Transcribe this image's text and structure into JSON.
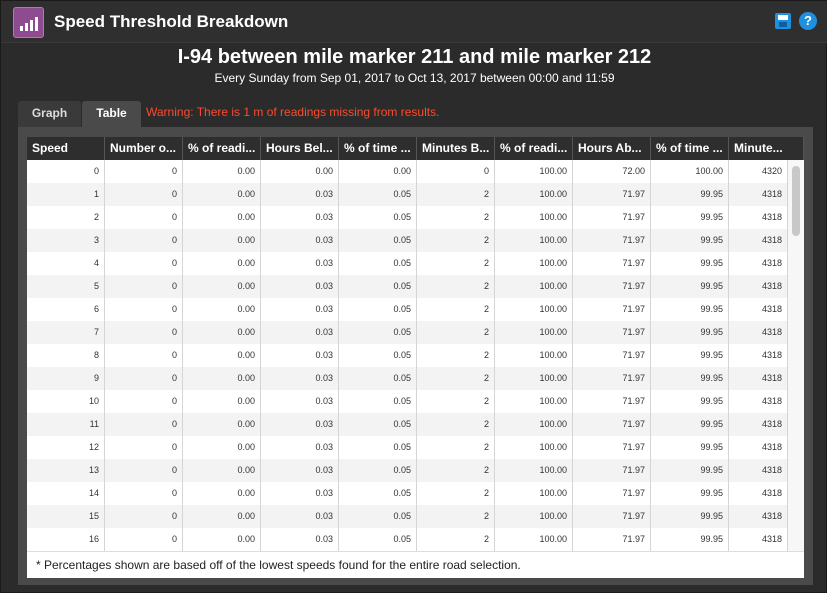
{
  "window": {
    "title": "Speed Threshold Breakdown",
    "help_label": "?"
  },
  "report": {
    "heading": "I-94 between mile marker 211 and mile marker 212",
    "subheading": "Every Sunday from Sep 01, 2017 to Oct 13, 2017 between 00:00 and 11:59"
  },
  "tabs": [
    {
      "label": "Graph",
      "active": false
    },
    {
      "label": "Table",
      "active": true
    }
  ],
  "warning": "Warning: There is 1 m of readings missing from results.",
  "table": {
    "columns": [
      "Speed",
      "Number o...",
      "% of readi...",
      "Hours Bel...",
      "% of time ...",
      "Minutes B...",
      "% of readi...",
      "Hours Ab...",
      "% of time ...",
      "Minute..."
    ],
    "rows": [
      [
        "0",
        "0",
        "0.00",
        "0.00",
        "0.00",
        "0",
        "100.00",
        "72.00",
        "100.00",
        "4320"
      ],
      [
        "1",
        "0",
        "0.00",
        "0.03",
        "0.05",
        "2",
        "100.00",
        "71.97",
        "99.95",
        "4318"
      ],
      [
        "2",
        "0",
        "0.00",
        "0.03",
        "0.05",
        "2",
        "100.00",
        "71.97",
        "99.95",
        "4318"
      ],
      [
        "3",
        "0",
        "0.00",
        "0.03",
        "0.05",
        "2",
        "100.00",
        "71.97",
        "99.95",
        "4318"
      ],
      [
        "4",
        "0",
        "0.00",
        "0.03",
        "0.05",
        "2",
        "100.00",
        "71.97",
        "99.95",
        "4318"
      ],
      [
        "5",
        "0",
        "0.00",
        "0.03",
        "0.05",
        "2",
        "100.00",
        "71.97",
        "99.95",
        "4318"
      ],
      [
        "6",
        "0",
        "0.00",
        "0.03",
        "0.05",
        "2",
        "100.00",
        "71.97",
        "99.95",
        "4318"
      ],
      [
        "7",
        "0",
        "0.00",
        "0.03",
        "0.05",
        "2",
        "100.00",
        "71.97",
        "99.95",
        "4318"
      ],
      [
        "8",
        "0",
        "0.00",
        "0.03",
        "0.05",
        "2",
        "100.00",
        "71.97",
        "99.95",
        "4318"
      ],
      [
        "9",
        "0",
        "0.00",
        "0.03",
        "0.05",
        "2",
        "100.00",
        "71.97",
        "99.95",
        "4318"
      ],
      [
        "10",
        "0",
        "0.00",
        "0.03",
        "0.05",
        "2",
        "100.00",
        "71.97",
        "99.95",
        "4318"
      ],
      [
        "11",
        "0",
        "0.00",
        "0.03",
        "0.05",
        "2",
        "100.00",
        "71.97",
        "99.95",
        "4318"
      ],
      [
        "12",
        "0",
        "0.00",
        "0.03",
        "0.05",
        "2",
        "100.00",
        "71.97",
        "99.95",
        "4318"
      ],
      [
        "13",
        "0",
        "0.00",
        "0.03",
        "0.05",
        "2",
        "100.00",
        "71.97",
        "99.95",
        "4318"
      ],
      [
        "14",
        "0",
        "0.00",
        "0.03",
        "0.05",
        "2",
        "100.00",
        "71.97",
        "99.95",
        "4318"
      ],
      [
        "15",
        "0",
        "0.00",
        "0.03",
        "0.05",
        "2",
        "100.00",
        "71.97",
        "99.95",
        "4318"
      ],
      [
        "16",
        "0",
        "0.00",
        "0.03",
        "0.05",
        "2",
        "100.00",
        "71.97",
        "99.95",
        "4318"
      ]
    ]
  },
  "footnote": "* Percentages shown are based off of the lowest speeds found for the entire road selection.",
  "icons": {
    "app": "bar-chart-icon",
    "save": "save-icon",
    "help": "help-icon"
  },
  "colors": {
    "warning": "#ff4a2b",
    "accent": "#1f8fe0",
    "app_icon": "#8e4b8f"
  }
}
